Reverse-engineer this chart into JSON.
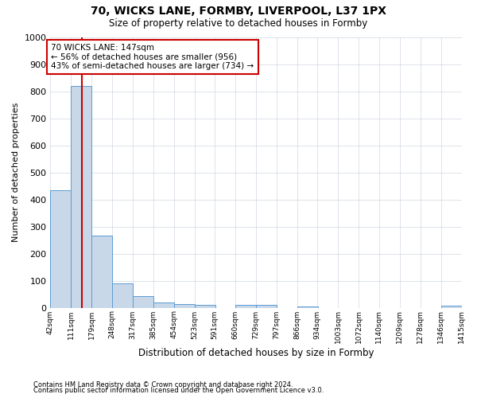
{
  "title1": "70, WICKS LANE, FORMBY, LIVERPOOL, L37 1PX",
  "title2": "Size of property relative to detached houses in Formby",
  "xlabel": "Distribution of detached houses by size in Formby",
  "ylabel": "Number of detached properties",
  "annotation_line1": "70 WICKS LANE: 147sqm",
  "annotation_line2": "← 56% of detached houses are smaller (956)",
  "annotation_line3": "43% of semi-detached houses are larger (734) →",
  "property_size": 147,
  "bar_color": "#c8d8e8",
  "bar_edge_color": "#5b9bd5",
  "line_color": "#cc0000",
  "annotation_box_color": "#ffffff",
  "annotation_box_edge": "#cc0000",
  "background_color": "#ffffff",
  "grid_color": "#d0d8e0",
  "bins": [
    42,
    111,
    179,
    248,
    317,
    385,
    454,
    523,
    591,
    660,
    729,
    797,
    866,
    934,
    1003,
    1072,
    1140,
    1209,
    1278,
    1346,
    1415
  ],
  "bin_labels": [
    "42sqm",
    "111sqm",
    "179sqm",
    "248sqm",
    "317sqm",
    "385sqm",
    "454sqm",
    "523sqm",
    "591sqm",
    "660sqm",
    "729sqm",
    "797sqm",
    "866sqm",
    "934sqm",
    "1003sqm",
    "1072sqm",
    "1140sqm",
    "1209sqm",
    "1278sqm",
    "1346sqm",
    "1415sqm"
  ],
  "counts": [
    435,
    820,
    265,
    90,
    42,
    18,
    14,
    9,
    0,
    10,
    10,
    0,
    5,
    0,
    0,
    0,
    0,
    0,
    0,
    7
  ],
  "ylim": [
    0,
    1000
  ],
  "yticks": [
    0,
    100,
    200,
    300,
    400,
    500,
    600,
    700,
    800,
    900,
    1000
  ],
  "footer1": "Contains HM Land Registry data © Crown copyright and database right 2024.",
  "footer2": "Contains public sector information licensed under the Open Government Licence v3.0."
}
